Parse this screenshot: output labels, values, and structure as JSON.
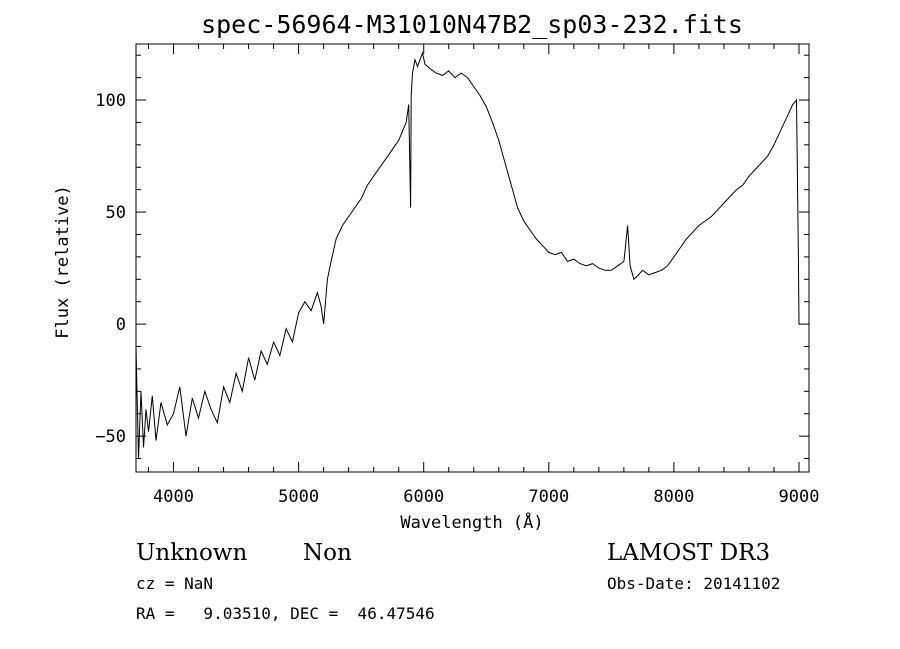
{
  "chart_data": {
    "type": "line",
    "title": "spec-56964-M31010N47B2_sp03-232.fits",
    "xlabel": "Wavelength (Å)",
    "ylabel": "Flux (relative)",
    "xlim": [
      3700,
      9080
    ],
    "ylim": [
      -66,
      125
    ],
    "x_ticks": [
      4000,
      5000,
      6000,
      7000,
      8000,
      9000
    ],
    "y_ticks": [
      -50,
      0,
      50,
      100
    ],
    "grid": false,
    "series": [
      {
        "x": [
          3700,
          3720,
          3740,
          3760,
          3780,
          3800,
          3830,
          3860,
          3900,
          3950,
          4000,
          4050,
          4100,
          4150,
          4200,
          4250,
          4300,
          4350,
          4400,
          4450,
          4500,
          4550,
          4600,
          4650,
          4700,
          4750,
          4800,
          4850,
          4900,
          4950,
          5000,
          5050,
          5100,
          5150,
          5180,
          5200,
          5230,
          5260,
          5300,
          5350,
          5400,
          5450,
          5500,
          5550,
          5600,
          5650,
          5700,
          5750,
          5800,
          5830,
          5860,
          5880,
          5895,
          5900,
          5910,
          5930,
          5950,
          5970,
          5990,
          6010,
          6050,
          6100,
          6150,
          6200,
          6250,
          6300,
          6350,
          6400,
          6450,
          6500,
          6550,
          6600,
          6650,
          6700,
          6750,
          6800,
          6850,
          6900,
          6950,
          7000,
          7050,
          7100,
          7150,
          7200,
          7250,
          7300,
          7350,
          7400,
          7450,
          7500,
          7550,
          7600,
          7630,
          7650,
          7680,
          7700,
          7750,
          7800,
          7850,
          7900,
          7950,
          8000,
          8050,
          8100,
          8150,
          8200,
          8250,
          8300,
          8350,
          8400,
          8450,
          8500,
          8550,
          8600,
          8650,
          8700,
          8750,
          8800,
          8850,
          8900,
          8950,
          8980,
          8995,
          9000,
          9005
        ],
        "y": [
          -10,
          -60,
          -30,
          -55,
          -38,
          -48,
          -32,
          -52,
          -35,
          -45,
          -40,
          -28,
          -50,
          -33,
          -42,
          -30,
          -38,
          -44,
          -28,
          -35,
          -22,
          -30,
          -15,
          -25,
          -12,
          -18,
          -8,
          -14,
          -2,
          -8,
          5,
          10,
          6,
          14,
          8,
          0,
          20,
          28,
          38,
          44,
          48,
          52,
          56,
          62,
          66,
          70,
          74,
          78,
          82,
          86,
          90,
          98,
          52,
          102,
          112,
          118,
          115,
          118,
          121,
          116,
          114,
          112,
          111,
          113,
          110,
          112,
          110,
          106,
          102,
          97,
          90,
          82,
          72,
          62,
          52,
          46,
          42,
          38,
          35,
          32,
          31,
          32,
          28,
          29,
          27,
          26,
          27,
          25,
          24,
          24,
          26,
          28,
          44,
          26,
          20,
          21,
          24,
          22,
          23,
          24,
          26,
          30,
          34,
          38,
          41,
          44,
          46,
          48,
          51,
          54,
          57,
          60,
          62,
          66,
          69,
          72,
          75,
          80,
          86,
          92,
          98,
          100,
          30,
          0,
          0
        ]
      }
    ]
  },
  "annotations": {
    "class_name": "Unknown",
    "subclass": "Non",
    "survey": "LAMOST DR3",
    "redshift": "cz = NaN",
    "obs_date": "Obs-Date: 20141102",
    "coords": "RA =   9.03510, DEC =  46.47546"
  }
}
